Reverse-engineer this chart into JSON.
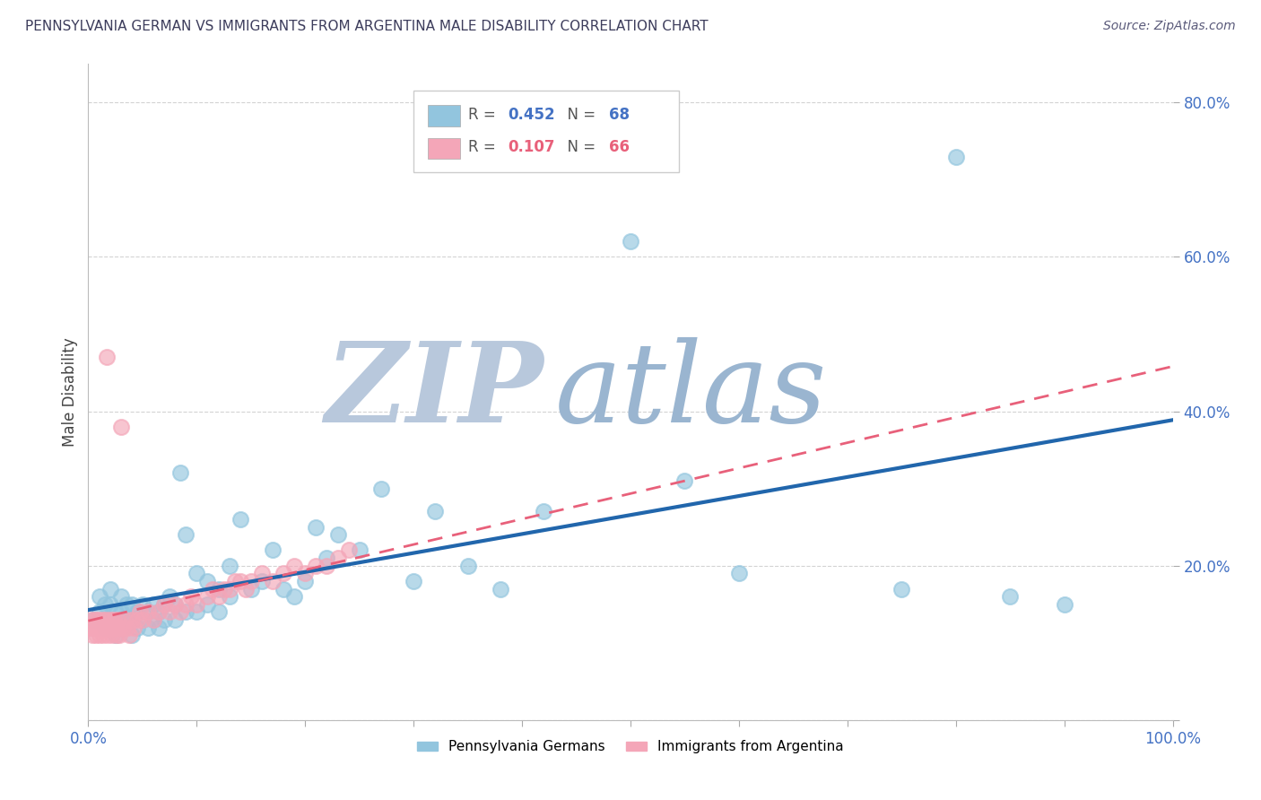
{
  "title": "PENNSYLVANIA GERMAN VS IMMIGRANTS FROM ARGENTINA MALE DISABILITY CORRELATION CHART",
  "source": "Source: ZipAtlas.com",
  "ylabel": "Male Disability",
  "xlabel": "",
  "xlim": [
    0,
    1.0
  ],
  "ylim": [
    0,
    0.85
  ],
  "ytick_positions": [
    0.0,
    0.2,
    0.4,
    0.6,
    0.8
  ],
  "yticklabels": [
    "",
    "20.0%",
    "40.0%",
    "60.0%",
    "80.0%"
  ],
  "legend1_label": "Pennsylvania Germans",
  "legend2_label": "Immigrants from Argentina",
  "R_blue": 0.452,
  "N_blue": 68,
  "R_pink": 0.107,
  "N_pink": 66,
  "blue_color": "#92c5de",
  "pink_color": "#f4a6b8",
  "blue_line_color": "#2166ac",
  "pink_line_color": "#e8607a",
  "axis_color": "#4472c4",
  "title_color": "#3d3d5c",
  "source_color": "#5a5a7a",
  "watermark_zip": "ZIP",
  "watermark_atlas": "atlas",
  "watermark_color_zip": "#b8c8dc",
  "watermark_color_atlas": "#9ab5d0",
  "blue_scatter_x": [
    0.005,
    0.01,
    0.01,
    0.015,
    0.015,
    0.02,
    0.02,
    0.02,
    0.025,
    0.025,
    0.03,
    0.03,
    0.03,
    0.035,
    0.035,
    0.04,
    0.04,
    0.04,
    0.045,
    0.045,
    0.05,
    0.05,
    0.055,
    0.055,
    0.06,
    0.06,
    0.065,
    0.065,
    0.07,
    0.07,
    0.075,
    0.08,
    0.08,
    0.085,
    0.09,
    0.09,
    0.1,
    0.1,
    0.11,
    0.11,
    0.12,
    0.12,
    0.13,
    0.13,
    0.14,
    0.15,
    0.16,
    0.17,
    0.18,
    0.19,
    0.2,
    0.21,
    0.22,
    0.23,
    0.25,
    0.27,
    0.3,
    0.32,
    0.35,
    0.38,
    0.42,
    0.5,
    0.55,
    0.6,
    0.75,
    0.8,
    0.85,
    0.9
  ],
  "blue_scatter_y": [
    0.13,
    0.14,
    0.16,
    0.12,
    0.15,
    0.13,
    0.15,
    0.17,
    0.11,
    0.14,
    0.12,
    0.14,
    0.16,
    0.13,
    0.15,
    0.11,
    0.13,
    0.15,
    0.12,
    0.14,
    0.13,
    0.15,
    0.12,
    0.14,
    0.13,
    0.15,
    0.12,
    0.14,
    0.13,
    0.15,
    0.16,
    0.13,
    0.15,
    0.32,
    0.14,
    0.24,
    0.14,
    0.19,
    0.15,
    0.18,
    0.14,
    0.17,
    0.16,
    0.2,
    0.26,
    0.17,
    0.18,
    0.22,
    0.17,
    0.16,
    0.18,
    0.25,
    0.21,
    0.24,
    0.22,
    0.3,
    0.18,
    0.27,
    0.2,
    0.17,
    0.27,
    0.62,
    0.31,
    0.19,
    0.17,
    0.73,
    0.16,
    0.15
  ],
  "pink_scatter_x": [
    0.002,
    0.003,
    0.004,
    0.005,
    0.006,
    0.007,
    0.008,
    0.009,
    0.01,
    0.01,
    0.012,
    0.013,
    0.014,
    0.015,
    0.016,
    0.017,
    0.018,
    0.019,
    0.02,
    0.021,
    0.022,
    0.023,
    0.024,
    0.025,
    0.026,
    0.027,
    0.028,
    0.029,
    0.03,
    0.032,
    0.034,
    0.036,
    0.038,
    0.04,
    0.042,
    0.045,
    0.048,
    0.05,
    0.055,
    0.06,
    0.065,
    0.07,
    0.075,
    0.08,
    0.085,
    0.09,
    0.095,
    0.1,
    0.11,
    0.115,
    0.12,
    0.125,
    0.13,
    0.135,
    0.14,
    0.145,
    0.15,
    0.16,
    0.17,
    0.18,
    0.19,
    0.2,
    0.21,
    0.22,
    0.23,
    0.24
  ],
  "pink_scatter_y": [
    0.12,
    0.13,
    0.11,
    0.12,
    0.13,
    0.11,
    0.12,
    0.13,
    0.11,
    0.12,
    0.12,
    0.13,
    0.11,
    0.12,
    0.13,
    0.47,
    0.11,
    0.12,
    0.13,
    0.12,
    0.11,
    0.12,
    0.13,
    0.12,
    0.11,
    0.13,
    0.12,
    0.11,
    0.38,
    0.12,
    0.13,
    0.12,
    0.11,
    0.13,
    0.12,
    0.13,
    0.14,
    0.13,
    0.14,
    0.13,
    0.14,
    0.15,
    0.14,
    0.15,
    0.14,
    0.15,
    0.16,
    0.15,
    0.16,
    0.17,
    0.16,
    0.17,
    0.17,
    0.18,
    0.18,
    0.17,
    0.18,
    0.19,
    0.18,
    0.19,
    0.2,
    0.19,
    0.2,
    0.2,
    0.21,
    0.22
  ]
}
